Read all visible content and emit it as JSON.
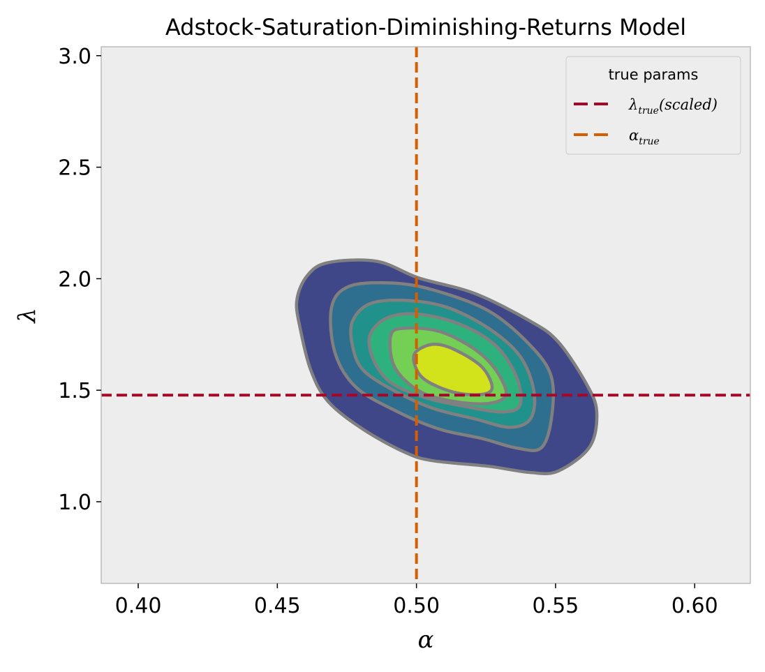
{
  "chart_data": {
    "type": "contour",
    "title": "Adstock-Saturation-Diminishing-Returns Model",
    "xlabel": "α",
    "ylabel": "λ",
    "xlim": [
      0.3867,
      0.62
    ],
    "ylim": [
      0.634,
      3.04
    ],
    "grid": false,
    "background": "#ededed",
    "xticks": [
      0.4,
      0.45,
      0.5,
      0.55,
      0.6
    ],
    "xtick_labels": [
      "0.40",
      "0.45",
      "0.50",
      "0.55",
      "0.60"
    ],
    "yticks": [
      1.0,
      1.5,
      2.0,
      2.5,
      3.0
    ],
    "ytick_labels": [
      "1.0",
      "1.5",
      "2.0",
      "2.5",
      "3.0"
    ],
    "contour_edge_color": "#808080",
    "contour_levels": [
      {
        "color": "#3f4788",
        "points": [
          [
            0.457,
            1.903
          ],
          [
            0.4607,
            2.013
          ],
          [
            0.4682,
            2.072
          ],
          [
            0.4858,
            2.078
          ],
          [
            0.5009,
            2.003
          ],
          [
            0.5209,
            1.934
          ],
          [
            0.541,
            1.809
          ],
          [
            0.551,
            1.716
          ],
          [
            0.5611,
            1.528
          ],
          [
            0.5648,
            1.403
          ],
          [
            0.5623,
            1.247
          ],
          [
            0.551,
            1.138
          ],
          [
            0.541,
            1.131
          ],
          [
            0.5259,
            1.159
          ],
          [
            0.5059,
            1.184
          ],
          [
            0.4958,
            1.222
          ],
          [
            0.4808,
            1.325
          ],
          [
            0.4682,
            1.45
          ],
          [
            0.462,
            1.591
          ],
          [
            0.4582,
            1.778
          ]
        ]
      },
      {
        "color": "#2e6e8e",
        "points": [
          [
            0.4695,
            1.872
          ],
          [
            0.4758,
            1.966
          ],
          [
            0.4908,
            1.981
          ],
          [
            0.5059,
            1.95
          ],
          [
            0.5259,
            1.856
          ],
          [
            0.541,
            1.7
          ],
          [
            0.5485,
            1.559
          ],
          [
            0.5485,
            1.372
          ],
          [
            0.5448,
            1.241
          ],
          [
            0.536,
            1.241
          ],
          [
            0.5234,
            1.284
          ],
          [
            0.5084,
            1.325
          ],
          [
            0.4933,
            1.403
          ],
          [
            0.4783,
            1.513
          ],
          [
            0.4707,
            1.669
          ]
        ]
      },
      {
        "color": "#21918c",
        "points": [
          [
            0.477,
            1.809
          ],
          [
            0.4833,
            1.888
          ],
          [
            0.4958,
            1.903
          ],
          [
            0.5109,
            1.872
          ],
          [
            0.5259,
            1.778
          ],
          [
            0.5372,
            1.653
          ],
          [
            0.5422,
            1.497
          ],
          [
            0.541,
            1.372
          ],
          [
            0.5335,
            1.334
          ],
          [
            0.5209,
            1.372
          ],
          [
            0.5059,
            1.419
          ],
          [
            0.4921,
            1.497
          ],
          [
            0.4808,
            1.591
          ],
          [
            0.477,
            1.7
          ]
        ]
      },
      {
        "color": "#2db27d",
        "points": [
          [
            0.4833,
            1.747
          ],
          [
            0.4896,
            1.825
          ],
          [
            0.5009,
            1.841
          ],
          [
            0.5159,
            1.794
          ],
          [
            0.5285,
            1.7
          ],
          [
            0.536,
            1.559
          ],
          [
            0.5372,
            1.434
          ],
          [
            0.531,
            1.403
          ],
          [
            0.5184,
            1.425
          ],
          [
            0.5034,
            1.466
          ],
          [
            0.4908,
            1.534
          ],
          [
            0.4845,
            1.638
          ]
        ]
      },
      {
        "color": "#74d055",
        "points": [
          [
            0.4908,
            1.747
          ],
          [
            0.4958,
            1.778
          ],
          [
            0.5084,
            1.763
          ],
          [
            0.5209,
            1.684
          ],
          [
            0.5285,
            1.591
          ],
          [
            0.5322,
            1.481
          ],
          [
            0.5259,
            1.441
          ],
          [
            0.5134,
            1.45
          ],
          [
            0.5009,
            1.497
          ],
          [
            0.4921,
            1.606
          ]
        ]
      },
      {
        "color": "#d2e21b",
        "points": [
          [
            0.4996,
            1.669
          ],
          [
            0.5059,
            1.706
          ],
          [
            0.5134,
            1.684
          ],
          [
            0.5234,
            1.606
          ],
          [
            0.5272,
            1.513
          ],
          [
            0.5234,
            1.481
          ],
          [
            0.5134,
            1.491
          ],
          [
            0.5034,
            1.544
          ],
          [
            0.4996,
            1.606
          ]
        ]
      }
    ],
    "reference_lines": {
      "lambda_true": {
        "orientation": "horizontal",
        "value": 1.478,
        "color": "#a60628",
        "style": "dashed"
      },
      "alpha_true": {
        "orientation": "vertical",
        "value": 0.5,
        "color": "#d55e00",
        "style": "dashed"
      }
    },
    "legend": {
      "title": "true params",
      "placement": "top-right",
      "entries": [
        {
          "symbol": "λ",
          "subscript": "true",
          "suffix": "(scaled)",
          "color": "#a60628"
        },
        {
          "symbol": "α",
          "subscript": "true",
          "suffix": "",
          "color": "#d55e00"
        }
      ]
    }
  }
}
